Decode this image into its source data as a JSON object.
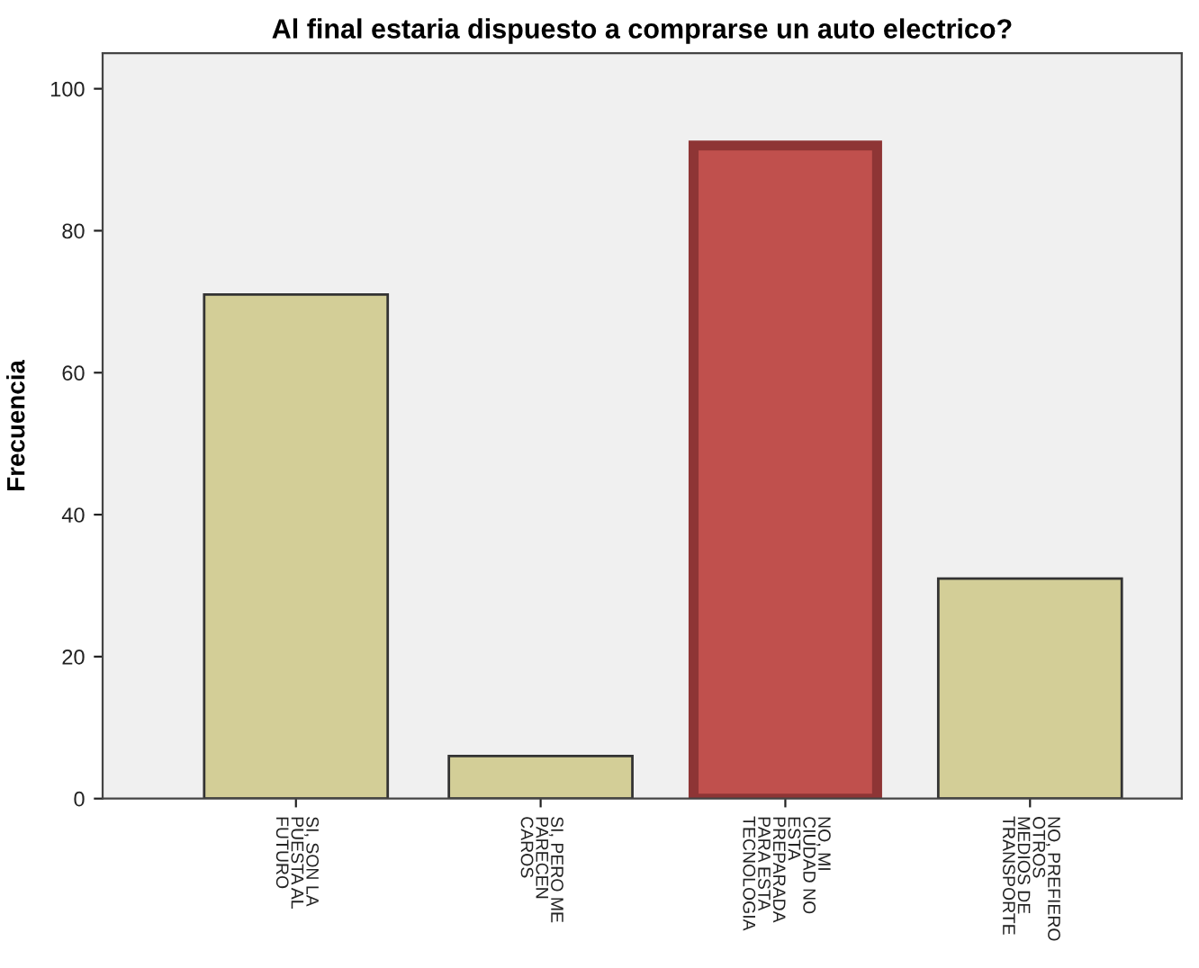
{
  "chart_data": {
    "type": "bar",
    "title": "Al final estaria dispuesto a comprarse un auto electrico?",
    "ylabel": "Frecuencia",
    "categories": [
      "SI, SON LA\nPUESTA AL\nFUTURO",
      "SI, PERO ME\nPARECEN\nCAROS",
      "NO, MI\nCIUDAD NO\nESTA\nPREPARADA\nPARA ESTA\nTECNOLOGIA",
      "NO, PREFIERO\nOTROS\nMEDIOS DE\nTRANSPORTE"
    ],
    "values": [
      71,
      6,
      92,
      31
    ],
    "colors": [
      "#d3ce97",
      "#d3ce97",
      "#c0504d",
      "#d3ce97"
    ],
    "ylim": [
      0,
      105
    ],
    "yticks": [
      0,
      20,
      40,
      60,
      80,
      100
    ],
    "grid": false,
    "legend": false
  }
}
